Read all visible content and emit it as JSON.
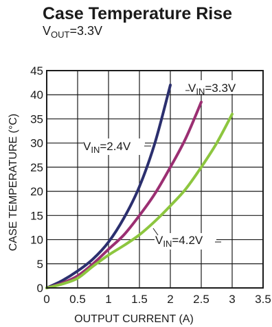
{
  "chart_data": {
    "type": "line",
    "title": "Case Temperature Rise",
    "subtitle": {
      "prefix": "V",
      "sub": "OUT",
      "suffix": "=3.3V"
    },
    "xlabel": "OUTPUT CURRENT (A)",
    "ylabel": "CASE TEMPERATURE (°C)",
    "xlim": [
      0,
      3.5
    ],
    "ylim": [
      0,
      45
    ],
    "x_ticks": [
      "0",
      "0.5",
      "1",
      "1.5",
      "2",
      "2.5",
      "3",
      "3.5"
    ],
    "y_ticks": [
      "0",
      "5",
      "10",
      "15",
      "20",
      "25",
      "30",
      "35",
      "40",
      "45"
    ],
    "grid": true,
    "legend": "none",
    "series": [
      {
        "name": "VIN=2.4V",
        "color": "#2b2f6e",
        "x": [
          0,
          0.25,
          0.5,
          0.75,
          1.0,
          1.25,
          1.5,
          1.75,
          2.0
        ],
        "y": [
          0,
          1.5,
          3.5,
          6.0,
          9.5,
          14.5,
          21,
          30,
          42
        ]
      },
      {
        "name": "VIN=3.3V",
        "color": "#9b2f72",
        "x": [
          0,
          0.25,
          0.5,
          0.75,
          1.0,
          1.25,
          1.5,
          1.75,
          2.0,
          2.25,
          2.5
        ],
        "y": [
          0,
          1.0,
          2.5,
          5.0,
          8.0,
          11.0,
          15.0,
          19.5,
          25.0,
          31.0,
          38.5
        ]
      },
      {
        "name": "VIN=4.2V",
        "color": "#8dc63f",
        "x": [
          0,
          0.25,
          0.5,
          0.75,
          1.0,
          1.25,
          1.5,
          1.75,
          2.0,
          2.25,
          2.5,
          2.75,
          3.0
        ],
        "y": [
          0,
          0.8,
          2.0,
          4.5,
          6.8,
          8.8,
          11.0,
          13.8,
          17.0,
          20.5,
          25.0,
          30.0,
          36.0
        ]
      }
    ],
    "annotations": [
      {
        "name": "ann-vin-3v3",
        "prefix": "V",
        "sub": "IN",
        "suffix": "=3.3V"
      },
      {
        "name": "ann-vin-2v4",
        "prefix": "V",
        "sub": "IN",
        "suffix": "=2.4V"
      },
      {
        "name": "ann-vin-4v2",
        "prefix": "V",
        "sub": "IN",
        "suffix": "=4.2V"
      }
    ]
  }
}
